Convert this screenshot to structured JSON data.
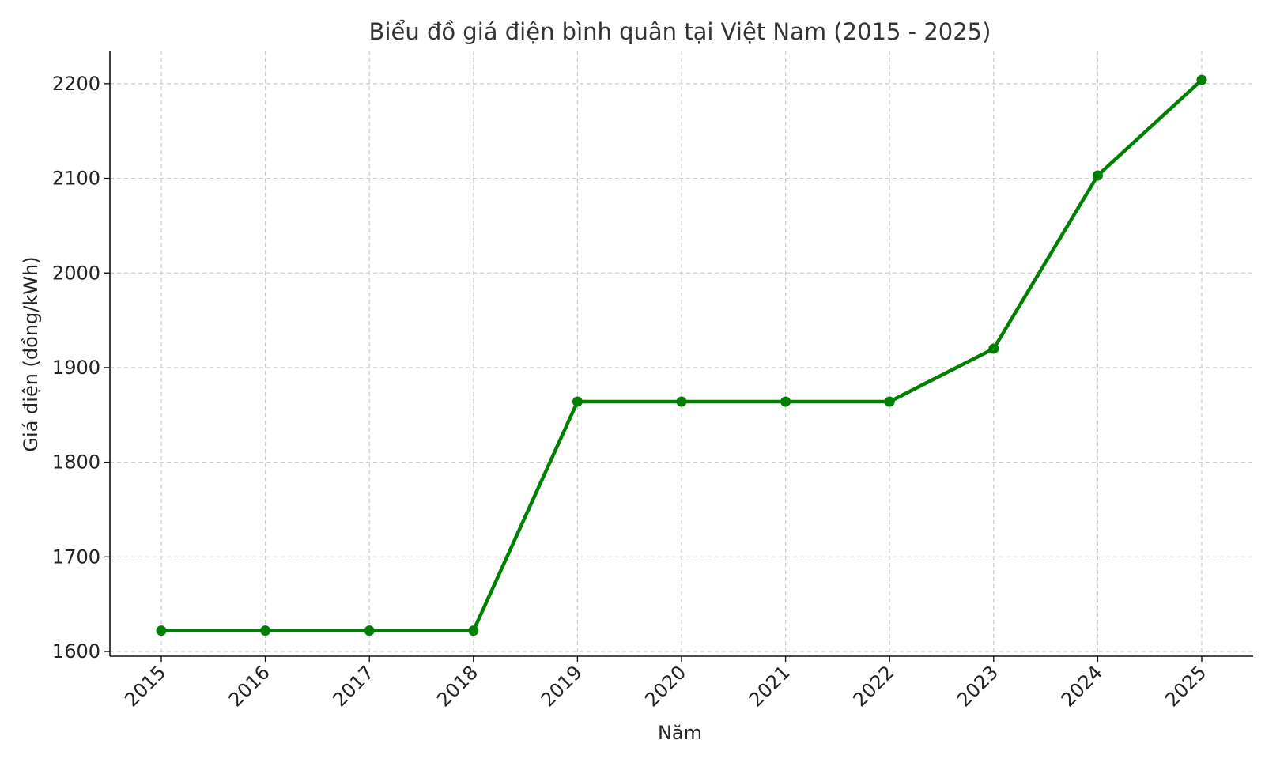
{
  "chart_data": {
    "type": "line",
    "title": "Biểu đồ giá điện bình quân tại Việt Nam (2015 - 2025)",
    "xlabel": "Năm",
    "ylabel": "Giá điện (đồng/kWh)",
    "x": [
      "2015",
      "2016",
      "2017",
      "2018",
      "2019",
      "2020",
      "2021",
      "2022",
      "2023",
      "2024",
      "2025"
    ],
    "series": [
      {
        "values": [
          1622,
          1622,
          1622,
          1622,
          1864,
          1864,
          1864,
          1864,
          1920,
          2103,
          2204
        ],
        "color": "#008000",
        "marker": "circle"
      }
    ],
    "ylim": [
      1595,
      2235
    ],
    "yticks": [
      1600,
      1700,
      1800,
      1900,
      2000,
      2100,
      2200
    ],
    "grid": true,
    "xtick_rotation": 45
  }
}
